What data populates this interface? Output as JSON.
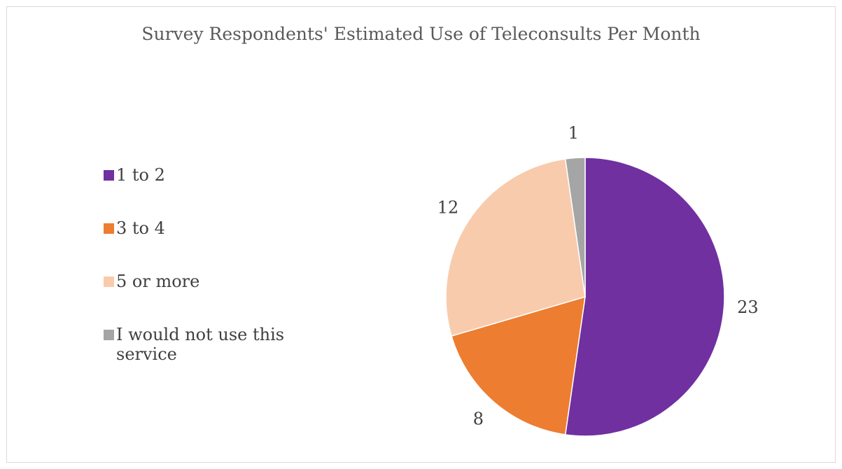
{
  "chart_data": {
    "type": "pie",
    "title": "Survey Respondents' Estimated Use of Teleconsults Per Month",
    "categories": [
      "1 to 2",
      "3 to 4",
      "5 or more",
      "I would not use this service"
    ],
    "values": [
      23,
      8,
      12,
      1
    ],
    "colors": [
      "#7030a0",
      "#ed7d31",
      "#f8cbad",
      "#a5a5a5"
    ],
    "data_labels": [
      "23",
      "8",
      "12",
      "1"
    ],
    "legend_position": "left",
    "start_angle": "12 o'clock",
    "direction": "clockwise"
  }
}
